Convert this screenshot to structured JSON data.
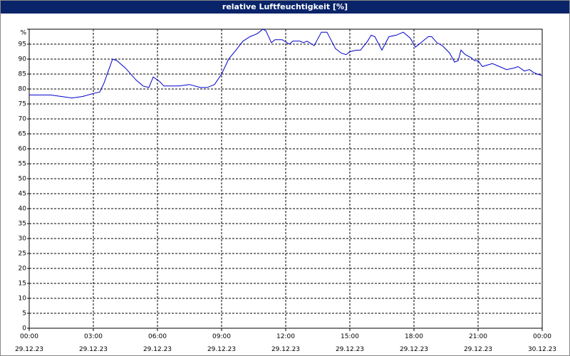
{
  "chart_data": {
    "type": "line",
    "title": "relative Luftfeuchtigkeit [%]",
    "x": [
      0,
      0.5,
      1,
      1.5,
      2,
      2.5,
      3,
      3.3,
      3.5,
      3.7,
      3.9,
      4.1,
      4.5,
      5,
      5.33,
      5.6,
      5.8,
      6.1,
      6.3,
      7,
      7.5,
      8,
      8.33,
      8.67,
      9,
      9.33,
      9.67,
      10,
      10.33,
      10.67,
      10.93,
      11.07,
      11.33,
      11.5,
      11.83,
      12.17,
      12.33,
      12.67,
      12.83,
      13,
      13.33,
      13.67,
      13.93,
      14.33,
      14.6,
      14.83,
      15,
      15.33,
      15.5,
      15.83,
      16,
      16.17,
      16.5,
      16.83,
      17.17,
      17.5,
      17.83,
      18.07,
      18.33,
      18.67,
      18.83,
      19.07,
      19.33,
      19.67,
      19.9,
      20.07,
      20.2,
      20.4,
      20.67,
      20.83,
      21,
      21.2,
      21.43,
      21.67,
      22,
      22.33,
      22.67,
      22.87,
      23.17,
      23.4,
      23.6,
      23.77,
      24
    ],
    "series": [
      {
        "name": "relative Luftfeuchtigkeit",
        "color": "#0000cc",
        "values": [
          78,
          78,
          78,
          77.5,
          77,
          77.5,
          78.5,
          79,
          82,
          86,
          90,
          89.5,
          87,
          83,
          81,
          80.5,
          84,
          82.5,
          81,
          81,
          81.5,
          80.5,
          80.5,
          81.5,
          85,
          90,
          93,
          96,
          97.5,
          98.5,
          100,
          99.5,
          95.5,
          96.5,
          96.5,
          95,
          96,
          96,
          95.5,
          96,
          94.5,
          99,
          99,
          93.5,
          92,
          91.5,
          92.5,
          93,
          93,
          96,
          98,
          97.5,
          93,
          97.5,
          98,
          99,
          97,
          94,
          95.5,
          97.5,
          97.5,
          95.5,
          94.5,
          92,
          89,
          89.5,
          93,
          91.5,
          90.5,
          89.5,
          89.5,
          87.5,
          88,
          88.5,
          87.5,
          86.5,
          87,
          87.5,
          86,
          86.5,
          85.5,
          85,
          84.5
        ]
      }
    ],
    "xlim": [
      0,
      24
    ],
    "xticks": [
      {
        "value": 0,
        "label": "00:00",
        "date": "29.12.23"
      },
      {
        "value": 3,
        "label": "03:00",
        "date": "29.12.23"
      },
      {
        "value": 6,
        "label": "06:00",
        "date": "29.12.23"
      },
      {
        "value": 9,
        "label": "09:00",
        "date": "29.12.23"
      },
      {
        "value": 12,
        "label": "12:00",
        "date": "29.12.23"
      },
      {
        "value": 15,
        "label": "15:00",
        "date": "29.12.23"
      },
      {
        "value": 18,
        "label": "18:00",
        "date": "29.12.23"
      },
      {
        "value": 21,
        "label": "21:00",
        "date": "29.12.23"
      },
      {
        "value": 24,
        "label": "00:00",
        "date": "30.12.23"
      }
    ],
    "ylim": [
      0,
      100
    ],
    "yticks": [
      0,
      5,
      10,
      15,
      20,
      25,
      30,
      35,
      40,
      45,
      50,
      55,
      60,
      65,
      70,
      75,
      80,
      85,
      90,
      95,
      {
        "value": 100,
        "label": "%"
      }
    ],
    "grid": true
  }
}
